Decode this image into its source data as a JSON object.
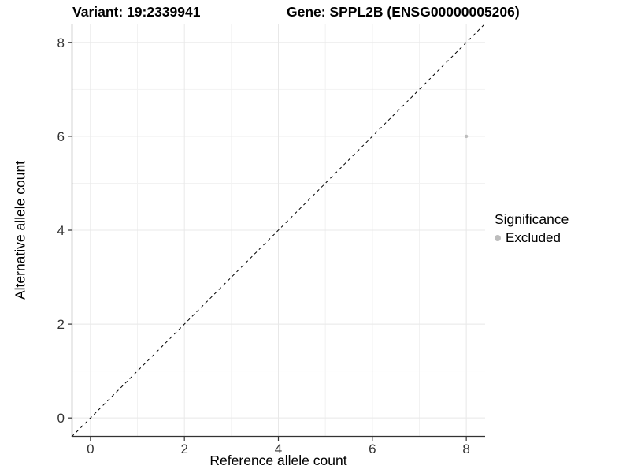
{
  "header": {
    "variant_title": "Variant: 19:2339941",
    "gene_title": "Gene: SPPL2B (ENSG00000005206)"
  },
  "legend": {
    "title": "Significance",
    "entries": [
      {
        "label": "Excluded",
        "color": "#bdbdbd"
      }
    ]
  },
  "chart_data": {
    "type": "scatter",
    "title_left": "Variant: 19:2339941",
    "title_right": "Gene: SPPL2B (ENSG00000005206)",
    "xlabel": "Reference allele count",
    "ylabel": "Alternative allele count",
    "xlim": [
      -0.4,
      8.4
    ],
    "ylim": [
      -0.4,
      8.4
    ],
    "xticks": [
      0,
      2,
      4,
      6,
      8
    ],
    "yticks": [
      0,
      2,
      4,
      6,
      8
    ],
    "minor_gridlines": [
      1,
      3,
      5,
      7
    ],
    "grid": true,
    "legend_position": "right",
    "series": [
      {
        "name": "Excluded",
        "color": "#bdbdbd",
        "points": [
          {
            "x": 8,
            "y": 6
          }
        ]
      }
    ],
    "reference_line": {
      "slope": 1,
      "intercept": 0,
      "style": "dashed",
      "color": "#000000"
    },
    "colors": {
      "panel_background": "#ffffff",
      "grid_major": "#e8e8e8",
      "grid_minor": "#f2f2f2",
      "axis_line": "#333333",
      "tick_mark": "#333333",
      "tick_label": "#333333"
    }
  }
}
